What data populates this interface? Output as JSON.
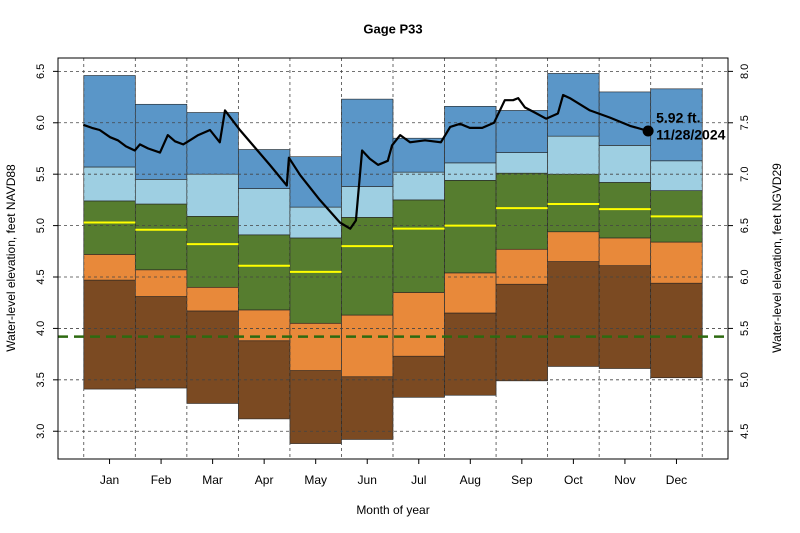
{
  "chart_data": {
    "type": "band",
    "title": "Gage P33",
    "xlabel": "Month of year",
    "ylabel": "Water-level elevation, feet NAVD88",
    "y2label": "Water-level elevation, feet NGVD29",
    "categories": [
      "Jan",
      "Feb",
      "Mar",
      "Apr",
      "May",
      "Jun",
      "Jul",
      "Aug",
      "Sep",
      "Oct",
      "Nov",
      "Dec"
    ],
    "xlim": [
      0,
      13
    ],
    "ylim": [
      2.73,
      6.63
    ],
    "yticks": [
      {
        "value": 3,
        "label": "3.0"
      },
      3.5,
      {
        "value": 4,
        "label": "4.0"
      },
      4.5,
      {
        "value": 5,
        "label": "5.0"
      },
      5.5,
      {
        "value": 6,
        "label": "6.0"
      },
      6.5
    ],
    "y2lim": [
      4.23,
      8.13
    ],
    "y2ticks": [
      4.5,
      {
        "value": 5,
        "label": "5.0"
      },
      5.5,
      {
        "value": 6,
        "label": "6.0"
      },
      6.5,
      {
        "value": 7,
        "label": "7.0"
      },
      7.5,
      {
        "value": 8,
        "label": "8.0"
      }
    ],
    "grid": true,
    "band_colors": [
      "#7b4a22",
      "#e8893a",
      "#567d2f",
      "#9ecfe2",
      "#5a96c8"
    ],
    "levels": [
      [
        3.41,
        3.42,
        3.27,
        3.12,
        2.88,
        2.92,
        3.33,
        3.35,
        3.49,
        3.63,
        3.61,
        3.52
      ],
      [
        4.47,
        4.31,
        4.17,
        3.88,
        3.59,
        3.53,
        3.73,
        4.15,
        4.43,
        4.65,
        4.61,
        4.44
      ],
      [
        4.72,
        4.57,
        4.4,
        4.18,
        4.05,
        4.13,
        4.35,
        4.54,
        4.77,
        4.94,
        4.88,
        4.84
      ],
      [
        5.24,
        5.21,
        5.09,
        4.91,
        4.88,
        5.08,
        5.25,
        5.44,
        5.51,
        5.5,
        5.42,
        5.34
      ],
      [
        5.57,
        5.45,
        5.5,
        5.36,
        5.18,
        5.38,
        5.52,
        5.61,
        5.71,
        5.87,
        5.78,
        5.63
      ],
      [
        6.46,
        6.18,
        6.1,
        5.74,
        5.67,
        6.23,
        5.85,
        6.16,
        6.12,
        6.48,
        6.3,
        6.33
      ]
    ],
    "median": {
      "color": "#ffff00",
      "values": [
        5.03,
        4.96,
        4.82,
        4.61,
        4.55,
        4.8,
        4.97,
        5.0,
        5.17,
        5.21,
        5.16,
        5.09
      ]
    },
    "reference_line": {
      "color": "#2d6a10",
      "value": 3.92
    },
    "series": [
      {
        "color": "#000000",
        "x": [
          0.49,
          0.66,
          0.81,
          1.01,
          1.16,
          1.32,
          1.49,
          1.59,
          1.75,
          1.98,
          2.13,
          2.27,
          2.43,
          2.56,
          2.72,
          2.95,
          3.14,
          3.24,
          3.53,
          3.82,
          4.11,
          4.44,
          4.48,
          4.7,
          5.08,
          5.47,
          5.67,
          5.78,
          5.9,
          6.05,
          6.21,
          6.4,
          6.48,
          6.64,
          6.83,
          7.12,
          7.43,
          7.61,
          7.8,
          7.99,
          8.23,
          8.46,
          8.67,
          8.83,
          8.93,
          9.06,
          9.25,
          9.47,
          9.7,
          9.8,
          9.93,
          10.32,
          10.71,
          11.1,
          11.45
        ],
        "values": [
          5.98,
          5.95,
          5.93,
          5.86,
          5.83,
          5.77,
          5.73,
          5.79,
          5.75,
          5.71,
          5.88,
          5.82,
          5.79,
          5.83,
          5.88,
          5.93,
          5.81,
          6.12,
          5.93,
          5.76,
          5.59,
          5.39,
          5.66,
          5.49,
          5.25,
          5.03,
          4.97,
          5.05,
          5.73,
          5.65,
          5.59,
          5.63,
          5.78,
          5.88,
          5.81,
          5.83,
          5.81,
          5.96,
          5.99,
          5.95,
          5.95,
          6.0,
          6.22,
          6.22,
          6.24,
          6.15,
          6.1,
          6.04,
          6.09,
          6.27,
          6.24,
          6.12,
          6.05,
          5.97,
          5.92
        ]
      }
    ],
    "marker": {
      "x": 11.45,
      "value": 5.92,
      "value_label": "5.92 ft.",
      "date": "11/28/2024"
    }
  }
}
